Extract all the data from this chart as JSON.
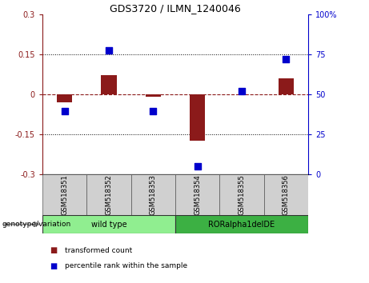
{
  "title": "GDS3720 / ILMN_1240046",
  "categories": [
    "GSM518351",
    "GSM518352",
    "GSM518353",
    "GSM518354",
    "GSM518355",
    "GSM518356"
  ],
  "red_bars": [
    -0.03,
    0.07,
    -0.01,
    -0.175,
    0.0,
    0.06
  ],
  "blue_dots_left_scale": [
    -0.065,
    0.165,
    -0.065,
    -0.27,
    0.01,
    0.13
  ],
  "ylim_left": [
    -0.3,
    0.3
  ],
  "ylim_right": [
    0,
    100
  ],
  "yticks_left": [
    -0.3,
    -0.15,
    0.0,
    0.15,
    0.3
  ],
  "yticks_right": [
    0,
    25,
    50,
    75,
    100
  ],
  "ytick_labels_left": [
    "-0.3",
    "-0.15",
    "0",
    "0.15",
    "0.3"
  ],
  "ytick_labels_right": [
    "0",
    "25",
    "50",
    "75",
    "100%"
  ],
  "hline_y": 0.0,
  "dotted_hlines": [
    -0.15,
    0.15
  ],
  "groups": [
    {
      "label": "wild type",
      "start": 0,
      "end": 3,
      "color": "#90EE90"
    },
    {
      "label": "RORalpha1delDE",
      "start": 3,
      "end": 6,
      "color": "#3CB043"
    }
  ],
  "group_label": "genotype/variation",
  "legend_items": [
    {
      "label": "transformed count",
      "color": "#8B1A1A"
    },
    {
      "label": "percentile rank within the sample",
      "color": "#0000CC"
    }
  ],
  "bar_color": "#8B1A1A",
  "dot_color": "#0000CC",
  "bar_width": 0.35,
  "dot_size": 30,
  "sample_box_color": "#D0D0D0",
  "title_fontsize": 9,
  "tick_fontsize": 7,
  "label_fontsize": 7
}
